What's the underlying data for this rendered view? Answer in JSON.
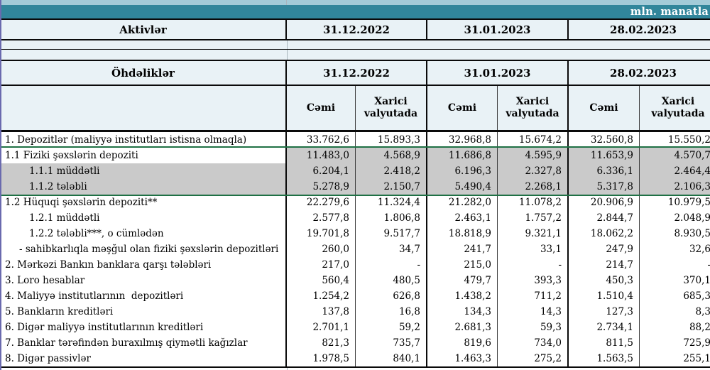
{
  "unit_label": "mln. manatla",
  "assets": {
    "title": "Aktivlər",
    "dates": [
      "31.12.2022",
      "31.01.2023",
      "28.02.2023"
    ]
  },
  "liabilities": {
    "title": "Öhdəliklər",
    "dates": [
      "31.12.2022",
      "31.01.2023",
      "28.02.2023"
    ],
    "col_total": "Cəmi",
    "col_foreign": "Xarici valyutada",
    "rows": [
      {
        "label": "1. Depozitlər (maliyyə institutları istisna olmaqla)",
        "indent": 0,
        "selected": false,
        "active_label": false,
        "values": [
          "33.762,6",
          "15.893,3",
          "32.968,8",
          "15.674,2",
          "32.560,8",
          "15.550,2"
        ]
      },
      {
        "label": "1.1 Fiziki şəxslərin depoziti",
        "indent": 0,
        "selected": true,
        "active_label": true,
        "values": [
          "11.483,0",
          "4.568,9",
          "11.686,8",
          "4.595,9",
          "11.653,9",
          "4.570,7"
        ]
      },
      {
        "label": "1.1.1 müddətli",
        "indent": 1,
        "selected": true,
        "active_label": false,
        "values": [
          "6.204,1",
          "2.418,2",
          "6.196,3",
          "2.327,8",
          "6.336,1",
          "2.464,4"
        ]
      },
      {
        "label": "1.1.2 tələbli",
        "indent": 1,
        "selected": true,
        "active_label": false,
        "values": [
          "5.278,9",
          "2.150,7",
          "5.490,4",
          "2.268,1",
          "5.317,8",
          "2.106,3"
        ]
      },
      {
        "label": "1.2 Hüquqi şəxslərin depoziti**",
        "indent": 0,
        "selected": false,
        "active_label": false,
        "values": [
          "22.279,6",
          "11.324,4",
          "21.282,0",
          "11.078,2",
          "20.906,9",
          "10.979,5"
        ]
      },
      {
        "label": "1.2.1 müddətli",
        "indent": 1,
        "selected": false,
        "active_label": false,
        "values": [
          "2.577,8",
          "1.806,8",
          "2.463,1",
          "1.757,2",
          "2.844,7",
          "2.048,9"
        ]
      },
      {
        "label": "1.2.2 tələbli***, o cümlədən",
        "indent": 1,
        "selected": false,
        "active_label": false,
        "values": [
          "19.701,8",
          "9.517,7",
          "18.818,9",
          "9.321,1",
          "18.062,2",
          "8.930,5"
        ]
      },
      {
        "label": "- sahibkarlıqla məşğul olan fiziki şəxslərin depozitləri",
        "indent": 2,
        "selected": false,
        "active_label": false,
        "values": [
          "260,0",
          "34,7",
          "241,7",
          "33,1",
          "247,9",
          "32,6"
        ]
      },
      {
        "label": "2. Mərkəzi Bankın banklara qarşı tələbləri",
        "indent": 0,
        "selected": false,
        "active_label": false,
        "values": [
          "217,0",
          "-",
          "215,0",
          "-",
          "214,7",
          "-"
        ]
      },
      {
        "label": "3. Loro hesablar",
        "indent": 0,
        "selected": false,
        "active_label": false,
        "values": [
          "560,4",
          "480,5",
          "479,7",
          "393,3",
          "450,3",
          "370,1"
        ]
      },
      {
        "label": "4. Maliyyə institutlarının  depozitləri",
        "indent": 0,
        "selected": false,
        "active_label": false,
        "values": [
          "1.254,2",
          "626,8",
          "1.438,2",
          "711,2",
          "1.510,4",
          "685,3"
        ]
      },
      {
        "label": "5. Bankların kreditləri",
        "indent": 0,
        "selected": false,
        "active_label": false,
        "values": [
          "137,8",
          "16,8",
          "134,3",
          "14,3",
          "127,3",
          "8,3"
        ]
      },
      {
        "label": "6. Digər maliyyə institutlarının kreditləri",
        "indent": 0,
        "selected": false,
        "active_label": false,
        "values": [
          "2.701,1",
          "59,2",
          "2.681,3",
          "59,3",
          "2.734,1",
          "88,2"
        ]
      },
      {
        "label": "7. Banklar tərəfindən buraxılmış qiymətli kağızlar",
        "indent": 0,
        "selected": false,
        "active_label": false,
        "values": [
          "821,3",
          "735,7",
          "819,6",
          "734,0",
          "811,5",
          "725,9"
        ]
      },
      {
        "label": "8. Digər passivlər",
        "indent": 0,
        "selected": false,
        "active_label": false,
        "values": [
          "1.978,5",
          "840,1",
          "1.463,3",
          "275,2",
          "1.563,5",
          "255,1"
        ]
      }
    ]
  },
  "colors": {
    "teal_band": "#31869B",
    "light_strip": "#A3CBD8",
    "cell_bg_light": "#E9F2F6",
    "selection_fill": "#CACACA",
    "selection_border": "#1F7145",
    "pane_edge": "#6A6AAE"
  }
}
